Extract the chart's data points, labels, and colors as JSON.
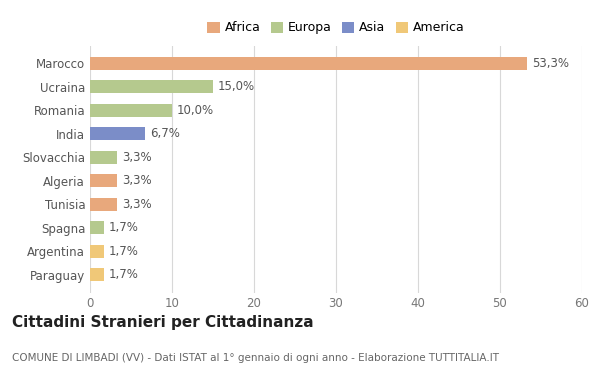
{
  "countries": [
    "Marocco",
    "Ucraina",
    "Romania",
    "India",
    "Slovacchia",
    "Algeria",
    "Tunisia",
    "Spagna",
    "Argentina",
    "Paraguay"
  ],
  "values": [
    53.3,
    15.0,
    10.0,
    6.7,
    3.3,
    3.3,
    3.3,
    1.7,
    1.7,
    1.7
  ],
  "labels": [
    "53,3%",
    "15,0%",
    "10,0%",
    "6,7%",
    "3,3%",
    "3,3%",
    "3,3%",
    "1,7%",
    "1,7%",
    "1,7%"
  ],
  "colors": [
    "#E8A87C",
    "#B5C98E",
    "#B5C98E",
    "#7B8DC8",
    "#B5C98E",
    "#E8A87C",
    "#E8A87C",
    "#B5C98E",
    "#F0C878",
    "#F0C878"
  ],
  "legend_labels": [
    "Africa",
    "Europa",
    "Asia",
    "America"
  ],
  "legend_colors": [
    "#E8A87C",
    "#B5C98E",
    "#7B8DC8",
    "#F0C878"
  ],
  "title": "Cittadini Stranieri per Cittadinanza",
  "subtitle": "COMUNE DI LIMBADI (VV) - Dati ISTAT al 1° gennaio di ogni anno - Elaborazione TUTTITALIA.IT",
  "xlim": [
    0,
    60
  ],
  "xticks": [
    0,
    10,
    20,
    30,
    40,
    50,
    60
  ],
  "background_color": "#ffffff",
  "grid_color": "#d8d8d8",
  "bar_height": 0.55,
  "title_fontsize": 11,
  "subtitle_fontsize": 7.5,
  "tick_fontsize": 8.5,
  "label_fontsize": 8.5,
  "legend_fontsize": 9
}
